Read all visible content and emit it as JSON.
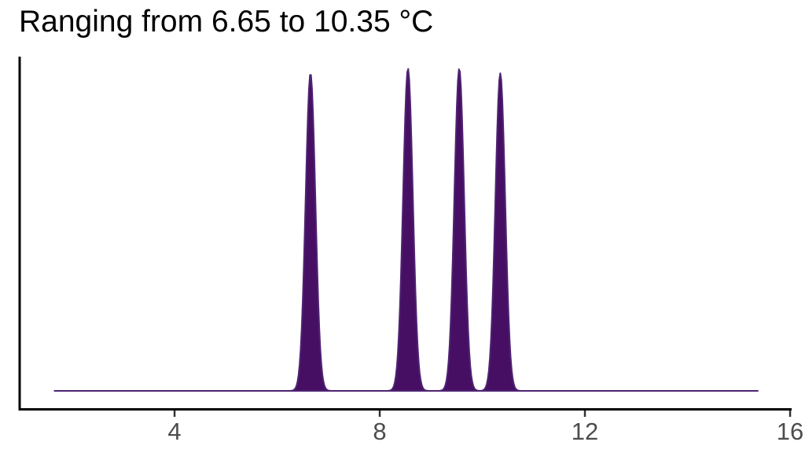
{
  "chart_data": {
    "type": "area",
    "subtype": "kernel_density_spikes",
    "title": "Ranging from 6.65 to 10.35 °C",
    "series": [
      {
        "name": "temperature_density",
        "kernel_centers": [
          6.65,
          8.55,
          9.55,
          10.35
        ],
        "kernel_rel_heights": [
          0.985,
          1.0,
          1.0,
          0.985
        ],
        "bandwidth": 0.095
      }
    ],
    "curve_x_range": [
      1.66,
      15.37
    ],
    "xlim": [
      0.98,
      16.03
    ],
    "x_ticks": [
      4,
      8,
      12,
      16
    ],
    "xlabel": "",
    "ylabel": "",
    "y_tick_labels_shown": false,
    "grid": false,
    "legend_position": "none",
    "colors": {
      "fill": "#470f63",
      "stroke": "#4e2372",
      "axis": "#000000",
      "tick": "#333333",
      "tick_label": "#4d4d4d",
      "title": "#000000",
      "background": "#ffffff"
    }
  }
}
